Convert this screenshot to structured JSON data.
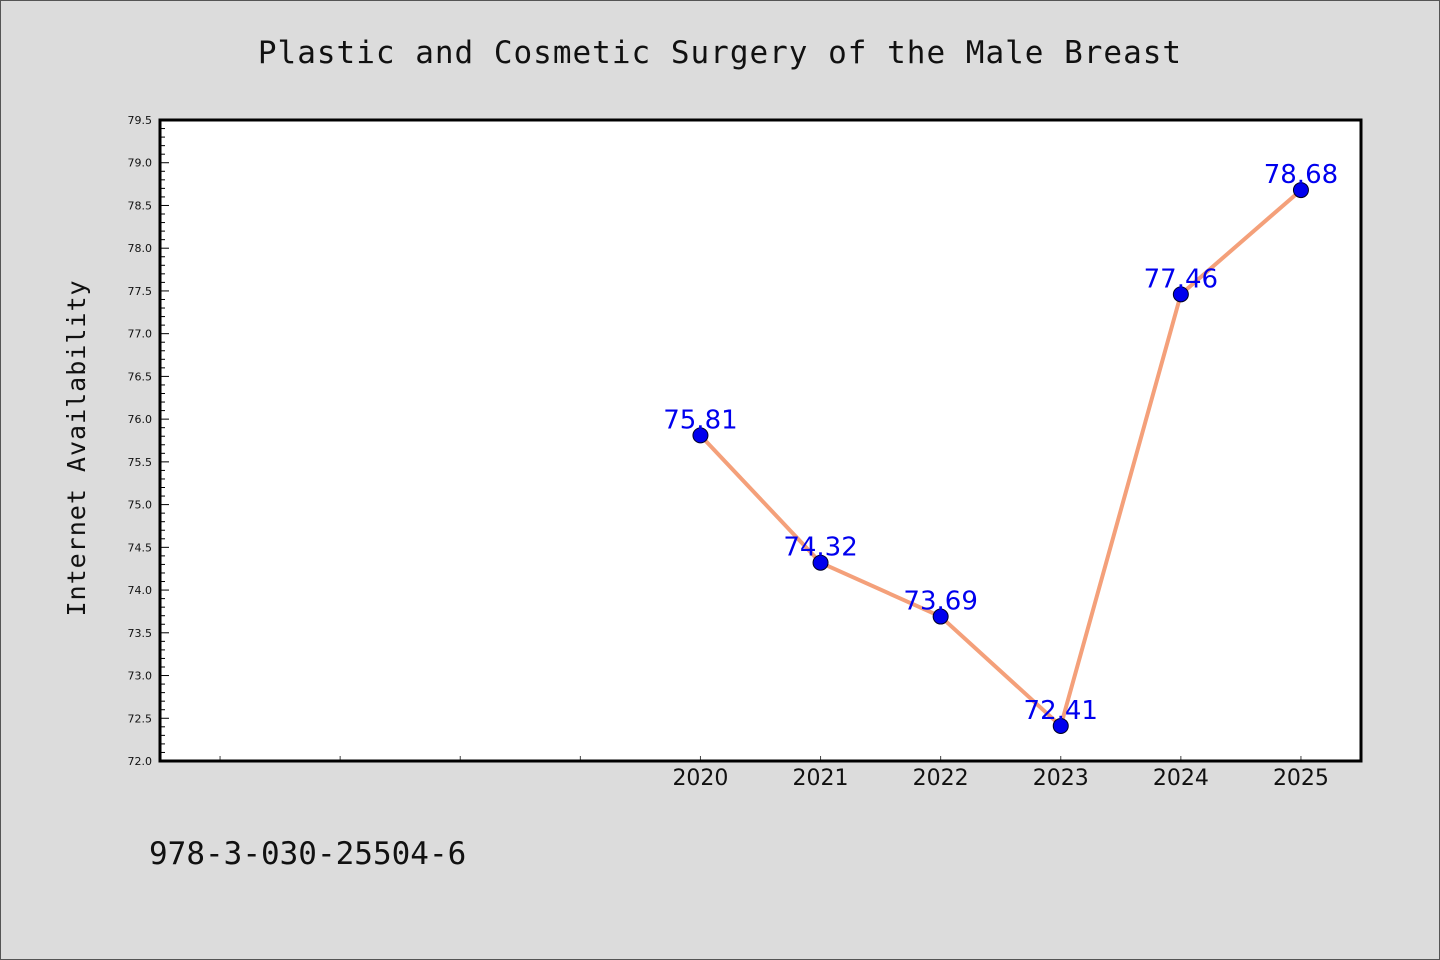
{
  "chart_data": {
    "type": "line",
    "title": "Plastic and Cosmetic Surgery of the Male Breast",
    "xlabel": "",
    "ylabel": "Internet Availability",
    "x": [
      2020,
      2021,
      2022,
      2023,
      2024,
      2025
    ],
    "x_tick_labels": [
      "2020",
      "2021",
      "2022",
      "2023",
      "2024",
      "2025"
    ],
    "xlim": [
      2015.5,
      2025.5
    ],
    "series": [
      {
        "values": [
          75.81,
          74.32,
          73.69,
          72.41,
          77.46,
          78.68
        ],
        "labels": [
          "75.81",
          "74.32",
          "73.69",
          "72.41",
          "77.46",
          "78.68"
        ]
      }
    ],
    "ylim": [
      72.0,
      79.5
    ],
    "y_ticks": [
      "72.0",
      "72.5",
      "73.0",
      "73.5",
      "74.0",
      "74.5",
      "75.0",
      "75.5",
      "76.0",
      "76.5",
      "77.0",
      "77.5",
      "78.0",
      "78.5",
      "79.0",
      "79.5"
    ],
    "grid": false,
    "legend": "none"
  },
  "footer": {
    "isbn": "978-3-030-25504-6"
  },
  "colors": {
    "background": "#dcdcdc",
    "plot_background": "#ffffff",
    "line": "#f4a07a",
    "marker": "#0000ee",
    "data_label": "#0000ee"
  }
}
